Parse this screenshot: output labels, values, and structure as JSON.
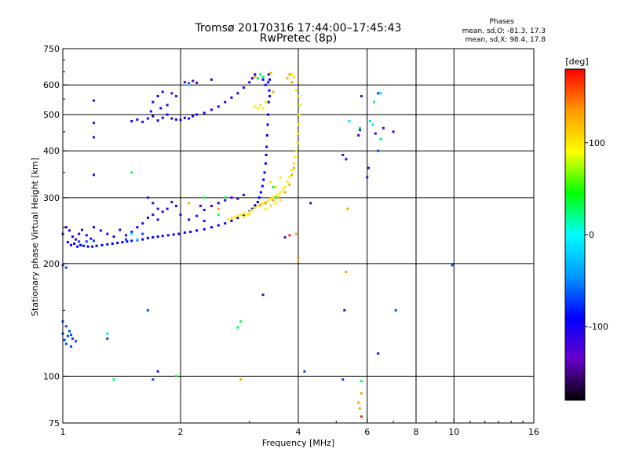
{
  "chart_data": {
    "type": "scatter",
    "title_line1": "Tromsø 20170316 17:44:00–17:45:43",
    "title_line2": "RwPretec (8p)",
    "xlabel": "Frequency [MHz]",
    "ylabel": "Stationary phase Virtual Height [km]",
    "x_scale": "log",
    "y_scale": "log",
    "xlim": [
      1,
      16
    ],
    "ylim": [
      75,
      750
    ],
    "x_ticks": [
      1,
      2,
      4,
      6,
      8,
      10,
      16
    ],
    "x_tick_labels": [
      "1",
      "2",
      "4",
      "6",
      "8",
      "10",
      "16"
    ],
    "x_gridlines": [
      2,
      4,
      6,
      8,
      10
    ],
    "y_ticks": [
      75,
      100,
      200,
      300,
      400,
      500,
      600,
      750
    ],
    "y_tick_labels": [
      "75",
      "100",
      "200",
      "300",
      "400",
      "500",
      "600",
      "750"
    ],
    "y_gridlines": [
      100,
      200,
      300,
      400,
      500,
      600
    ],
    "grid": true,
    "phases_box": {
      "title": "Phases",
      "line_o": "mean, sd,O: -81.3, 17.3",
      "line_x": "mean, sd,X:  98.4, 17.8"
    },
    "colorbar": {
      "label": "[deg]",
      "range": [
        -180,
        180
      ],
      "tick_values": [
        100,
        0,
        -100
      ],
      "tick_labels": [
        "100",
        "0",
        "-100"
      ],
      "colormap": [
        "#000000",
        "#6600cc",
        "#0000ff",
        "#0099ff",
        "#00ffff",
        "#00ff00",
        "#ffff00",
        "#ff9900",
        "#ff0000"
      ]
    },
    "series": [
      {
        "phase": -90,
        "points": [
          [
            1.03,
            228
          ],
          [
            1.05,
            224
          ],
          [
            1.07,
            226
          ],
          [
            1.09,
            222
          ],
          [
            1.11,
            224
          ],
          [
            1.13,
            223
          ],
          [
            1.16,
            222
          ],
          [
            1.19,
            222
          ],
          [
            1.22,
            223
          ],
          [
            1.26,
            224
          ],
          [
            1.3,
            225
          ],
          [
            1.34,
            226
          ],
          [
            1.38,
            227
          ],
          [
            1.42,
            228
          ],
          [
            1.46,
            229
          ],
          [
            1.5,
            230
          ],
          [
            1.55,
            231
          ],
          [
            1.6,
            232
          ],
          [
            1.65,
            234
          ],
          [
            1.7,
            235
          ],
          [
            1.75,
            236
          ],
          [
            1.8,
            237
          ],
          [
            1.86,
            238
          ],
          [
            1.92,
            239
          ],
          [
            1.98,
            240
          ],
          [
            2.05,
            242
          ],
          [
            2.12,
            243
          ],
          [
            2.2,
            245
          ],
          [
            2.3,
            247
          ],
          [
            2.4,
            250
          ],
          [
            2.5,
            253
          ],
          [
            2.6,
            256
          ],
          [
            2.7,
            260
          ],
          [
            2.8,
            265
          ],
          [
            2.9,
            270
          ],
          [
            3.0,
            276
          ],
          [
            3.05,
            280
          ],
          [
            3.1,
            286
          ],
          [
            3.15,
            292
          ],
          [
            3.18,
            300
          ],
          [
            3.21,
            310
          ],
          [
            3.24,
            322
          ],
          [
            3.26,
            335
          ],
          [
            3.28,
            350
          ],
          [
            3.3,
            370
          ],
          [
            3.31,
            390
          ],
          [
            3.32,
            410
          ],
          [
            3.33,
            440
          ],
          [
            3.34,
            470
          ],
          [
            3.35,
            500
          ],
          [
            3.36,
            540
          ],
          [
            3.37,
            580
          ],
          [
            3.38,
            620
          ],
          [
            3.36,
            640
          ],
          [
            3.3,
            600
          ],
          [
            3.25,
            620
          ],
          [
            3.35,
            610
          ],
          [
            3.38,
            560
          ]
        ]
      },
      {
        "phase": -110,
        "points": [
          [
            1.0,
            240
          ],
          [
            1.02,
            250
          ],
          [
            1.04,
            245
          ],
          [
            1.06,
            236
          ],
          [
            1.08,
            232
          ],
          [
            1.1,
            240
          ],
          [
            1.12,
            246
          ],
          [
            1.15,
            238
          ],
          [
            1.18,
            233
          ],
          [
            1.2,
            250
          ],
          [
            1.25,
            245
          ],
          [
            1.3,
            240
          ],
          [
            1.35,
            236
          ],
          [
            1.4,
            246
          ],
          [
            1.45,
            238
          ],
          [
            1.5,
            243
          ],
          [
            1.55,
            250
          ],
          [
            1.6,
            256
          ],
          [
            1.65,
            265
          ],
          [
            1.7,
            270
          ],
          [
            1.75,
            262
          ],
          [
            1.8,
            275
          ],
          [
            1.85,
            280
          ],
          [
            1.9,
            292
          ],
          [
            1.95,
            285
          ],
          [
            2.0,
            270
          ],
          [
            2.1,
            262
          ],
          [
            2.2,
            268
          ],
          [
            2.3,
            278
          ],
          [
            2.4,
            285
          ],
          [
            2.5,
            290
          ],
          [
            2.6,
            295
          ],
          [
            2.7,
            300
          ],
          [
            2.8,
            298
          ],
          [
            2.9,
            305
          ]
        ]
      },
      {
        "phase": -100,
        "points": [
          [
            1.5,
            480
          ],
          [
            1.55,
            485
          ],
          [
            1.6,
            478
          ],
          [
            1.65,
            488
          ],
          [
            1.7,
            495
          ],
          [
            1.75,
            482
          ],
          [
            1.8,
            490
          ],
          [
            1.85,
            500
          ],
          [
            1.9,
            488
          ],
          [
            1.95,
            485
          ],
          [
            2.0,
            484
          ],
          [
            2.05,
            490
          ],
          [
            2.1,
            488
          ],
          [
            2.15,
            495
          ],
          [
            2.2,
            500
          ],
          [
            2.3,
            505
          ],
          [
            2.4,
            515
          ],
          [
            2.5,
            525
          ],
          [
            2.6,
            540
          ],
          [
            2.7,
            555
          ],
          [
            2.8,
            570
          ],
          [
            2.9,
            590
          ],
          [
            3.0,
            610
          ],
          [
            3.05,
            625
          ],
          [
            3.1,
            640
          ],
          [
            1.7,
            540
          ],
          [
            1.75,
            560
          ],
          [
            1.8,
            575
          ],
          [
            1.78,
            520
          ],
          [
            1.85,
            530
          ],
          [
            1.68,
            510
          ]
        ]
      },
      {
        "phase": -120,
        "points": [
          [
            2.05,
            610
          ],
          [
            2.1,
            605
          ],
          [
            2.15,
            615
          ],
          [
            2.2,
            608
          ],
          [
            2.4,
            620
          ],
          [
            1.9,
            570
          ],
          [
            1.95,
            560
          ],
          [
            1.2,
            545
          ],
          [
            1.2,
            475
          ],
          [
            1.2,
            435
          ],
          [
            1.2,
            345
          ],
          [
            1.65,
            300
          ],
          [
            1.7,
            290
          ],
          [
            1.75,
            280
          ],
          [
            3.25,
            165
          ],
          [
            3.7,
            235
          ],
          [
            4.3,
            290
          ],
          [
            5.2,
            390
          ],
          [
            5.3,
            380
          ],
          [
            5.25,
            150
          ],
          [
            5.7,
            440
          ],
          [
            5.75,
            455
          ],
          [
            5.8,
            560
          ],
          [
            6.0,
            340
          ],
          [
            6.05,
            360
          ],
          [
            6.3,
            445
          ],
          [
            6.6,
            460
          ],
          [
            7.0,
            450
          ],
          [
            6.4,
            115
          ],
          [
            1.75,
            103
          ],
          [
            2.25,
            285
          ],
          [
            2.3,
            260
          ]
        ]
      },
      {
        "phase": -70,
        "points": [
          [
            1.0,
            130
          ],
          [
            1.01,
            125
          ],
          [
            1.02,
            122
          ],
          [
            1.03,
            128
          ],
          [
            1.04,
            132
          ],
          [
            1.05,
            120
          ],
          [
            1.06,
            126
          ],
          [
            1.08,
            124
          ],
          [
            1.0,
            140
          ],
          [
            1.02,
            136
          ],
          [
            1.05,
            129
          ],
          [
            1.3,
            126
          ],
          [
            1.65,
            150
          ],
          [
            1.7,
            98
          ],
          [
            4.15,
            103
          ],
          [
            5.2,
            98
          ],
          [
            7.1,
            150
          ],
          [
            6.4,
            400
          ],
          [
            6.4,
            570
          ],
          [
            9.9,
            198
          ],
          [
            1.0,
            198
          ],
          [
            1.02,
            195
          ],
          [
            1.45,
            232
          ],
          [
            1.1,
            229
          ],
          [
            1.6,
            240
          ],
          [
            1.2,
            230
          ],
          [
            1.15,
            229
          ]
        ]
      },
      {
        "phase": 100,
        "points": [
          [
            2.65,
            262
          ],
          [
            2.7,
            264
          ],
          [
            2.75,
            266
          ],
          [
            2.8,
            268
          ],
          [
            2.85,
            270
          ],
          [
            2.9,
            272
          ],
          [
            2.95,
            270
          ],
          [
            3.0,
            275
          ],
          [
            3.05,
            278
          ],
          [
            3.1,
            282
          ],
          [
            3.15,
            285
          ],
          [
            3.2,
            288
          ],
          [
            3.25,
            290
          ],
          [
            3.3,
            292
          ],
          [
            3.35,
            295
          ],
          [
            3.4,
            298
          ],
          [
            3.45,
            300
          ],
          [
            3.5,
            303
          ],
          [
            3.55,
            306
          ],
          [
            3.6,
            310
          ],
          [
            3.65,
            315
          ],
          [
            3.7,
            320
          ],
          [
            3.75,
            330
          ],
          [
            3.8,
            340
          ],
          [
            3.85,
            355
          ],
          [
            3.9,
            370
          ],
          [
            3.93,
            385
          ],
          [
            3.96,
            400
          ],
          [
            3.98,
            420
          ],
          [
            4.0,
            445
          ],
          [
            4.01,
            470
          ],
          [
            4.02,
            500
          ],
          [
            4.03,
            530
          ],
          [
            4.0,
            560
          ],
          [
            3.95,
            580
          ],
          [
            3.9,
            630
          ],
          [
            3.85,
            640
          ],
          [
            3.1,
            525
          ],
          [
            3.2,
            530
          ],
          [
            3.25,
            520
          ],
          [
            3.3,
            540
          ],
          [
            3.15,
            520
          ],
          [
            3.4,
            330
          ],
          [
            3.5,
            320
          ],
          [
            3.6,
            340
          ],
          [
            3.5,
            290
          ],
          [
            3.6,
            295
          ],
          [
            3.4,
            285
          ],
          [
            3.3,
            280
          ],
          [
            3.0,
            270
          ],
          [
            2.9,
            266
          ]
        ]
      },
      {
        "phase": 130,
        "points": [
          [
            3.2,
            286
          ],
          [
            3.3,
            290
          ],
          [
            3.45,
            295
          ],
          [
            3.55,
            300
          ],
          [
            3.7,
            310
          ],
          [
            3.8,
            325
          ],
          [
            3.85,
            345
          ],
          [
            3.9,
            360
          ],
          [
            3.95,
            240
          ],
          [
            4.0,
            205
          ],
          [
            5.3,
            190
          ],
          [
            5.35,
            280
          ],
          [
            5.7,
            85
          ],
          [
            5.8,
            90
          ],
          [
            5.75,
            82
          ],
          [
            2.85,
            98
          ],
          [
            3.8,
            640
          ],
          [
            3.75,
            625
          ],
          [
            3.85,
            610
          ],
          [
            3.4,
            645
          ],
          [
            3.45,
            575
          ],
          [
            3.1,
            630
          ],
          [
            2.1,
            290
          ],
          [
            2.5,
            280
          ]
        ]
      },
      {
        "phase": 30,
        "points": [
          [
            3.2,
            640
          ],
          [
            3.25,
            630
          ],
          [
            3.15,
            625
          ],
          [
            2.8,
            135
          ],
          [
            2.85,
            140
          ],
          [
            1.95,
            100
          ],
          [
            1.35,
            98
          ],
          [
            5.8,
            97
          ],
          [
            5.75,
            460
          ],
          [
            6.5,
            430
          ],
          [
            6.25,
            540
          ],
          [
            2.6,
            300
          ],
          [
            2.5,
            270
          ],
          [
            2.3,
            300
          ],
          [
            3.5,
            300
          ],
          [
            3.45,
            320
          ],
          [
            1.5,
            350
          ]
        ]
      },
      {
        "phase": -10,
        "points": [
          [
            1.3,
            130
          ],
          [
            6.5,
            570
          ],
          [
            6.1,
            480
          ],
          [
            6.2,
            470
          ],
          [
            5.4,
            480
          ],
          [
            2.1,
            600
          ],
          [
            1.5,
            240
          ],
          [
            1.55,
            232
          ]
        ]
      },
      {
        "phase": 170,
        "points": [
          [
            5.8,
            78
          ],
          [
            3.8,
            238
          ]
        ]
      }
    ]
  }
}
